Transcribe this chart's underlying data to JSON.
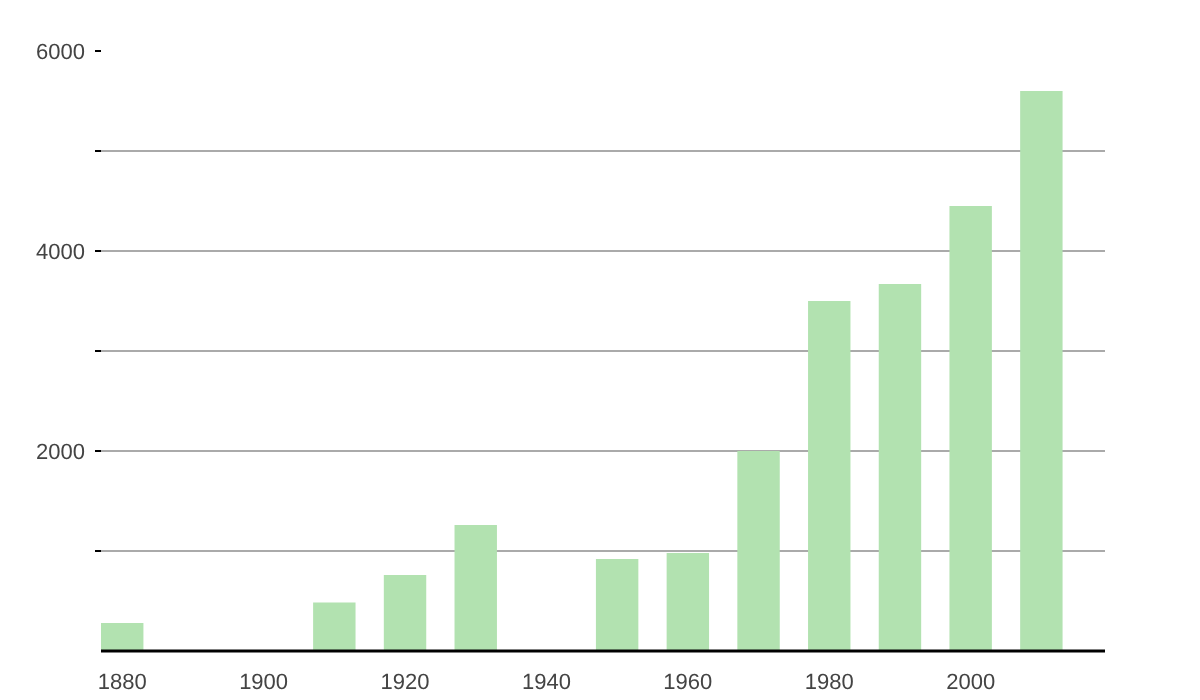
{
  "chart_data": {
    "type": "bar",
    "x": [
      1880,
      1910,
      1920,
      1930,
      1950,
      1960,
      1970,
      1980,
      1990,
      2000,
      2010
    ],
    "values": [
      280,
      485,
      760,
      1260,
      920,
      980,
      2000,
      3500,
      3670,
      4450,
      5600
    ],
    "color": "#b2e2b0",
    "xlim": [
      1877,
      2019
    ],
    "xticks": [
      1880,
      1900,
      1920,
      1940,
      1960,
      1980,
      2000
    ],
    "ylim": [
      0,
      6000
    ],
    "yticks": [
      {
        "value": 1000,
        "label": null
      },
      2000,
      {
        "value": 3000,
        "label": null
      },
      4000,
      {
        "value": 5000,
        "label": null
      },
      6000
    ],
    "grid": "y"
  }
}
